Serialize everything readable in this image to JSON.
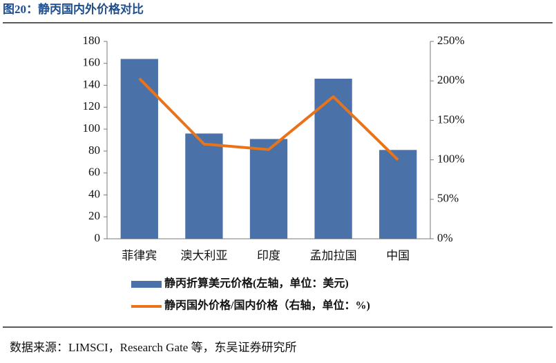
{
  "chart_data": {
    "type": "bar",
    "title": "图20：静丙国内外价格对比",
    "source": "数据来源：LIMSCI，Research Gate 等，东吴证券研究所",
    "categories": [
      "菲律宾",
      "澳大利亚",
      "印度",
      "孟加拉国",
      "中国"
    ],
    "series": [
      {
        "name": "静丙折算美元价格(左轴，单位：美元)",
        "type": "bar",
        "color": "#4a72a8",
        "values": [
          164,
          96,
          91,
          146,
          81
        ]
      },
      {
        "name": "静丙国外价格/国内价格（右轴，单位：%)",
        "type": "line",
        "axis": "y2",
        "color": "#e8731a",
        "values": [
          203,
          120,
          113,
          180,
          100
        ]
      }
    ],
    "ylim": [
      0,
      180
    ],
    "yticks": [
      0,
      20,
      40,
      60,
      80,
      100,
      120,
      140,
      160,
      180
    ],
    "y2lim": [
      0,
      250
    ],
    "y2ticks": [
      {
        "value": 0,
        "label": "0%"
      },
      {
        "value": 50,
        "label": "50%"
      },
      {
        "value": 100,
        "label": "100%"
      },
      {
        "value": 150,
        "label": "150%"
      },
      {
        "value": 200,
        "label": "200%"
      },
      {
        "value": 250,
        "label": "250%"
      }
    ]
  }
}
